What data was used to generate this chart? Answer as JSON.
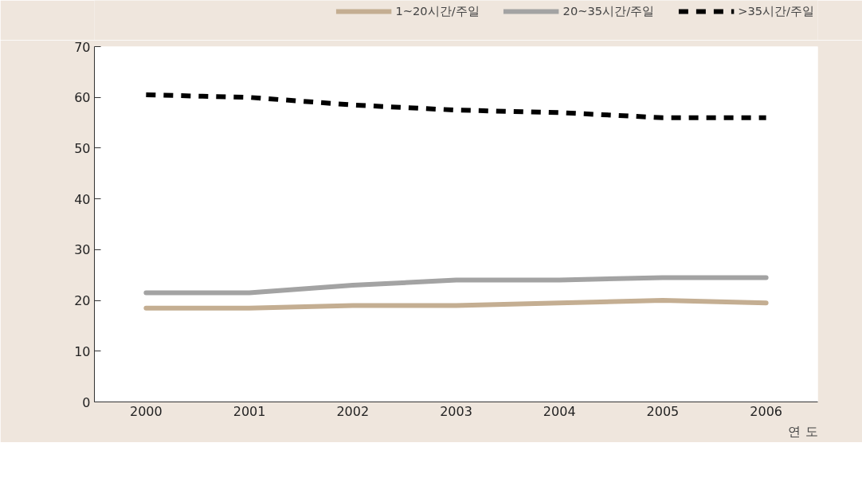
{
  "chart_data": {
    "type": "line",
    "xlabel": "연 도",
    "categories": [
      "2000",
      "2001",
      "2002",
      "2003",
      "2004",
      "2005",
      "2006"
    ],
    "series": [
      {
        "name": "1~20시간/주일",
        "color": "#c4ae92",
        "line_style": "solid",
        "values": [
          18.5,
          18.5,
          19,
          19,
          19.5,
          20,
          19.5
        ]
      },
      {
        "name": "20~35시간/주일",
        "color": "#a3a3a3",
        "line_style": "solid",
        "values": [
          21.5,
          21.5,
          23,
          24,
          24,
          24.5,
          24.5
        ]
      },
      {
        "name": ">35시간/주일",
        "color": "#000000",
        "line_style": "dashed",
        "values": [
          60.5,
          60,
          58.5,
          57.5,
          57,
          56,
          56
        ]
      }
    ],
    "ylim": [
      0,
      70
    ],
    "yticks": [
      0,
      10,
      20,
      30,
      40,
      50,
      60,
      70
    ],
    "grid": false,
    "legend": "top right",
    "marker": "none"
  }
}
